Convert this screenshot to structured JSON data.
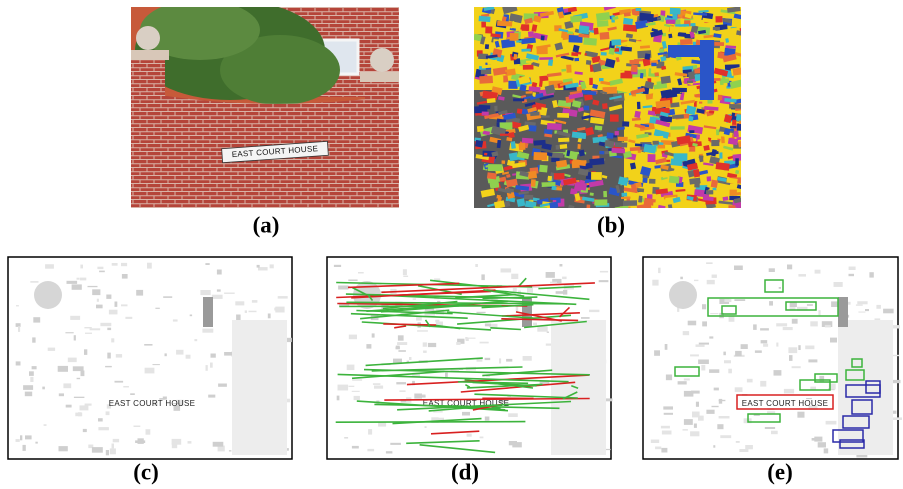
{
  "panels": [
    {
      "label": "(a)",
      "sign_text": "EAST COURT HOUSE"
    },
    {
      "label": "(b)"
    },
    {
      "label": "(c)",
      "sign_text": "EAST COURT HOUSE"
    },
    {
      "label": "(d)",
      "sign_text": "EAST COURT HOUSE"
    },
    {
      "label": "(e)",
      "sign_text": "EAST COURT HOUSE"
    }
  ]
}
